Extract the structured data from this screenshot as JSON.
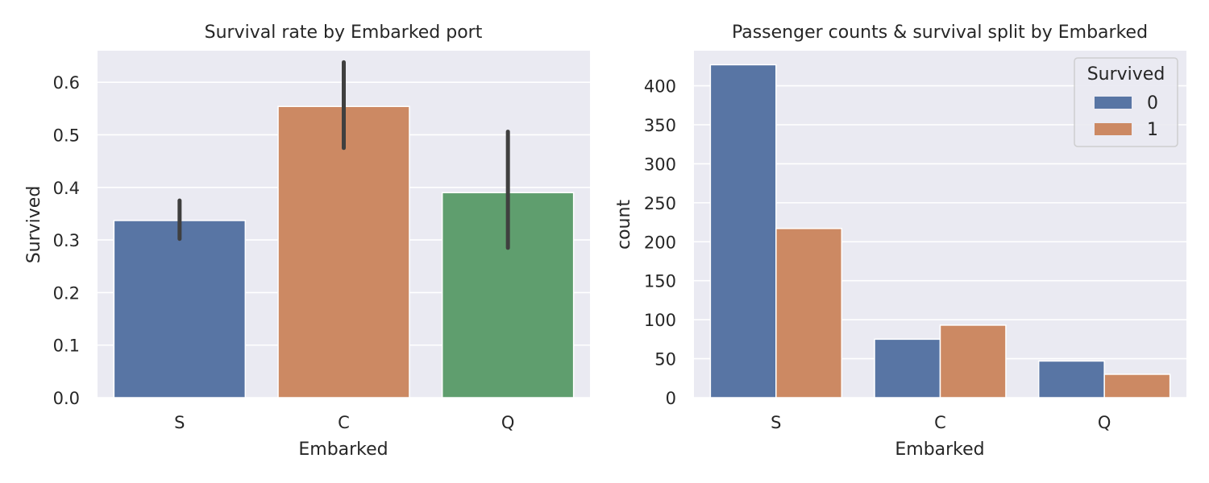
{
  "chart_data": [
    {
      "type": "bar",
      "title": "Survival rate by Embarked port",
      "xlabel": "Embarked",
      "ylabel": "Survived",
      "categories": [
        "S",
        "C",
        "Q"
      ],
      "values": [
        0.337,
        0.554,
        0.39
      ],
      "error_low": [
        0.302,
        0.475,
        0.285
      ],
      "error_high": [
        0.375,
        0.638,
        0.506
      ],
      "ylim": [
        0,
        0.66
      ],
      "yticks": [
        0.0,
        0.1,
        0.2,
        0.3,
        0.4,
        0.5,
        0.6
      ],
      "yticklabels": [
        "0.0",
        "0.1",
        "0.2",
        "0.3",
        "0.4",
        "0.5",
        "0.6"
      ],
      "colors": [
        "#5875a4",
        "#cc8963",
        "#5f9e6e"
      ],
      "grid": true
    },
    {
      "type": "bar",
      "title": "Passenger counts & survival split by Embarked",
      "xlabel": "Embarked",
      "ylabel": "count",
      "categories": [
        "S",
        "C",
        "Q"
      ],
      "series": [
        {
          "name": "0",
          "values": [
            427,
            75,
            47
          ],
          "color": "#5875a4"
        },
        {
          "name": "1",
          "values": [
            217,
            93,
            30
          ],
          "color": "#cc8963"
        }
      ],
      "ylim": [
        0,
        445
      ],
      "yticks": [
        0,
        50,
        100,
        150,
        200,
        250,
        300,
        350,
        400
      ],
      "yticklabels": [
        "0",
        "50",
        "100",
        "150",
        "200",
        "250",
        "300",
        "350",
        "400"
      ],
      "legend": {
        "title": "Survived",
        "placement": "top-right"
      },
      "grid": true
    }
  ]
}
